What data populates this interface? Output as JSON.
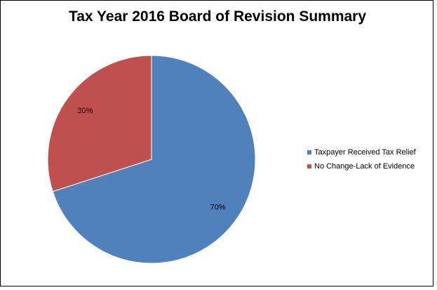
{
  "chart_data": {
    "type": "pie",
    "title": "Tax Year 2016 Board of Revision Summary",
    "categories": [
      "Taxpayer Received Tax Relief",
      "No Change-Lack of Evidence"
    ],
    "values": [
      70,
      30
    ],
    "data_labels": [
      "70%",
      "30%"
    ],
    "colors": [
      "#4F81BD",
      "#C0504D"
    ],
    "legend": {
      "placement": "right",
      "items": [
        "Taxpayer Received Tax Relief",
        "No Change-Lack of Evidence"
      ]
    },
    "start_angle": "12 o'clock",
    "direction": "clockwise"
  }
}
